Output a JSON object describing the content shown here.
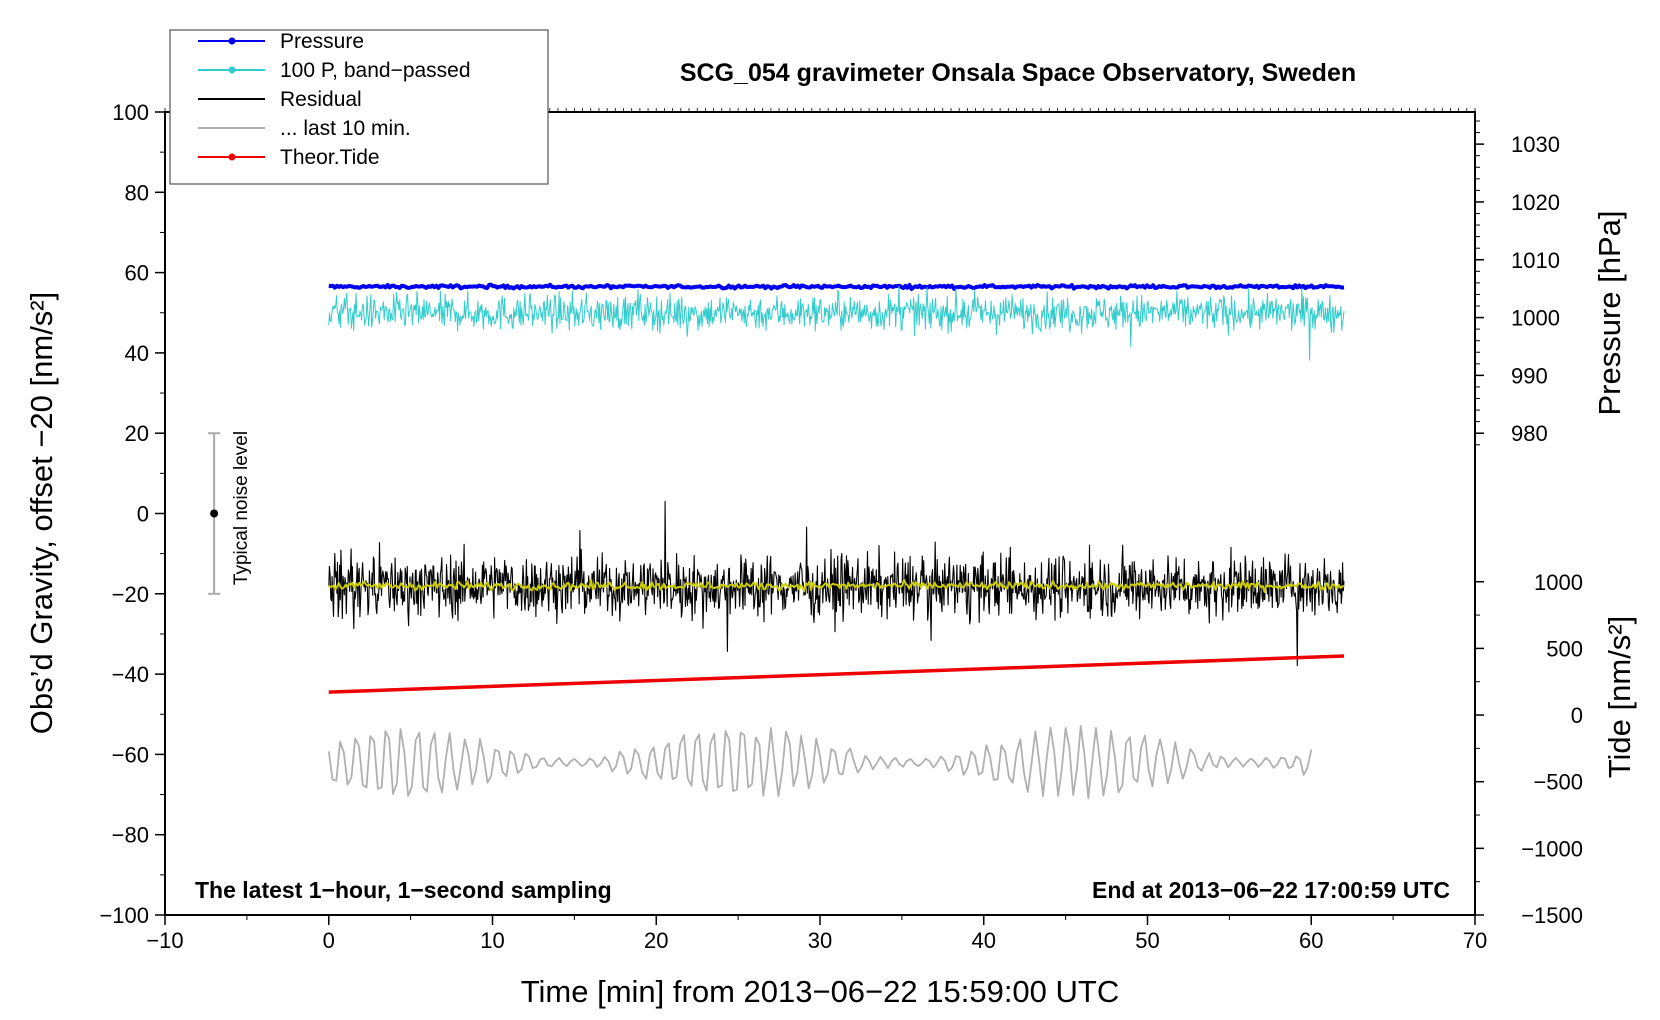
{
  "chart_data": {
    "type": "line",
    "title": "SCG_054 gravimeter Onsala Space Observatory, Sweden",
    "xlabel": "Time [min] from 2013−06−22 15:59:00 UTC",
    "ylabel_left": "Obs’d Gravity, offset −20 [nm/s²]",
    "ylabel_right_pressure": "Pressure [hPa]",
    "ylabel_right_tide": "Tide [nm/s²]",
    "xlim": [
      -10,
      70
    ],
    "ylim": [
      -100,
      100
    ],
    "x_ticks": [
      "−10",
      "0",
      "10",
      "20",
      "30",
      "40",
      "50",
      "60",
      "70"
    ],
    "y_ticks": [
      "100",
      "80",
      "60",
      "40",
      "20",
      "0",
      "−20",
      "−40",
      "−60",
      "−80",
      "−100"
    ],
    "pressure_ticks": [
      "1030",
      "1020",
      "1010",
      "1000",
      "990",
      "980"
    ],
    "pressure_tick_values": [
      1030,
      1020,
      1010,
      1000,
      990,
      980
    ],
    "pressure_axis_map": {
      "hpa": [
        980,
        1030
      ],
      "gravity": [
        20,
        92
      ]
    },
    "tide_ticks": [
      "1000",
      "500",
      "0",
      "−500",
      "−1000",
      "−1500"
    ],
    "tide_tick_values": [
      1000,
      500,
      0,
      -500,
      -1000,
      -1500
    ],
    "tide_axis_map": {
      "nms2": [
        -1500,
        1000
      ],
      "gravity": [
        -100,
        -17
      ]
    },
    "annotation_left": "The latest 1−hour, 1−second sampling",
    "annotation_right": "End at 2013−06−22 17:00:59 UTC",
    "noise_bar": {
      "label": "Typical noise level",
      "x": -7,
      "center": 0,
      "low": -20,
      "high": 20
    },
    "legend": [
      {
        "label": "Pressure",
        "color": "#0000ee",
        "marker": true
      },
      {
        "label": "100 P, band−passed",
        "color": "#33cccc",
        "marker": true
      },
      {
        "label": "Residual",
        "color": "#000000",
        "marker": false
      },
      {
        "label": "... last 10 min.",
        "color": "#b0b0b0",
        "marker": false
      },
      {
        "label": "Theor.Tide",
        "color": "#ee0000",
        "marker": true
      }
    ],
    "legend_position": "top-left",
    "series": [
      {
        "name": "Pressure",
        "color": "#0000ee",
        "x_range": [
          0,
          62
        ],
        "level": 56.5,
        "amplitude": 0.4
      },
      {
        "name": "100 P, band−passed",
        "color": "#33cccc",
        "x_range": [
          0,
          62
        ],
        "level": 50,
        "amplitude": 4
      },
      {
        "name": "Residual",
        "color": "#000000",
        "x_range": [
          0,
          62
        ],
        "level": -18,
        "amplitude": 7
      },
      {
        "name": "... last 10 min.",
        "color": "#b0b0b0",
        "x_range": [
          0,
          60
        ],
        "level": -62,
        "amplitude": 7
      },
      {
        "name": "Theor.Tide",
        "color": "#ee0000",
        "x_range": [
          0,
          62
        ],
        "start": -44.5,
        "end": -35.5
      },
      {
        "color": "#cccc00",
        "x_range": [
          0,
          62
        ],
        "level": -18,
        "amplitude": 1
      }
    ]
  }
}
